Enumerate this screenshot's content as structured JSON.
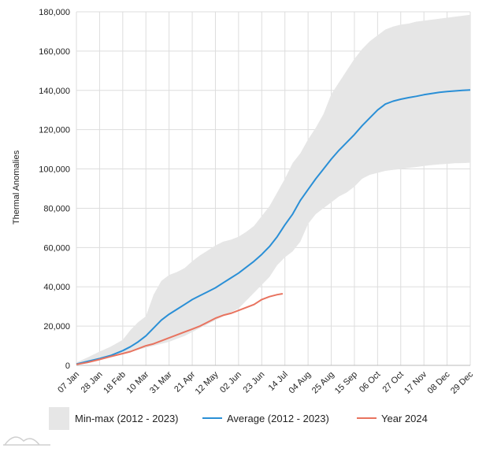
{
  "chart_data": {
    "type": "area",
    "title": "",
    "xlabel": "",
    "ylabel": "Thermal Anomalies",
    "ylim": [
      0,
      180000
    ],
    "yticks": [
      0,
      20000,
      40000,
      60000,
      80000,
      100000,
      120000,
      140000,
      160000,
      180000
    ],
    "ytick_labels": [
      "0",
      "20,000",
      "40,000",
      "60,000",
      "80,000",
      "100,000",
      "120,000",
      "140,000",
      "160,000",
      "180,000"
    ],
    "xlim_day": [
      7,
      364
    ],
    "xticks": [
      {
        "label": "07 Jan",
        "day": 7
      },
      {
        "label": "28 Jan",
        "day": 28
      },
      {
        "label": "18 Feb",
        "day": 49
      },
      {
        "label": "10 Mar",
        "day": 70
      },
      {
        "label": "31 Mar",
        "day": 91
      },
      {
        "label": "21 Apr",
        "day": 112
      },
      {
        "label": "12 May",
        "day": 133
      },
      {
        "label": "02 Jun",
        "day": 154
      },
      {
        "label": "23 Jun",
        "day": 175
      },
      {
        "label": "14 Jul",
        "day": 196
      },
      {
        "label": "04 Aug",
        "day": 217
      },
      {
        "label": "25 Aug",
        "day": 238
      },
      {
        "label": "15 Sep",
        "day": 259
      },
      {
        "label": "06 Oct",
        "day": 280
      },
      {
        "label": "27 Oct",
        "day": 301
      },
      {
        "label": "17 Nov",
        "day": 322
      },
      {
        "label": "08 Dec",
        "day": 343
      },
      {
        "label": "29 Dec",
        "day": 364
      }
    ],
    "grid": true,
    "legend_position": "bottom",
    "series": [
      {
        "name": "Min-max (2012 - 2023)",
        "kind": "band",
        "color": "#e6e6e6",
        "x": [
          7,
          17,
          28,
          38,
          49,
          56,
          63,
          70,
          77,
          84,
          91,
          98,
          105,
          112,
          119,
          126,
          133,
          140,
          147,
          154,
          161,
          168,
          175,
          182,
          189,
          196,
          203,
          210,
          217,
          224,
          231,
          238,
          245,
          252,
          259,
          266,
          273,
          280,
          287,
          294,
          301,
          308,
          315,
          322,
          329,
          336,
          343,
          350,
          357,
          364
        ],
        "upper": [
          1500,
          4000,
          7000,
          9500,
          13000,
          18000,
          22000,
          25000,
          36000,
          43000,
          46000,
          47500,
          49500,
          53000,
          56000,
          58500,
          61000,
          63000,
          64000,
          65500,
          68000,
          71000,
          76000,
          81000,
          88000,
          95000,
          103000,
          108000,
          115000,
          121000,
          128000,
          138000,
          144000,
          150000,
          156000,
          161000,
          165000,
          168000,
          171000,
          172500,
          173500,
          174000,
          175000,
          175500,
          176000,
          176500,
          177000,
          177500,
          178000,
          178500
        ],
        "lower": [
          300,
          1500,
          3000,
          4500,
          6000,
          7000,
          8000,
          9000,
          10000,
          11000,
          12000,
          13500,
          15000,
          17000,
          19000,
          21000,
          23000,
          25000,
          27000,
          29000,
          33000,
          37000,
          41000,
          45000,
          51000,
          55000,
          58000,
          63000,
          72000,
          77000,
          80000,
          83000,
          86000,
          88000,
          91000,
          95000,
          97000,
          98000,
          99000,
          99500,
          100000,
          100500,
          101000,
          101500,
          102000,
          102300,
          102600,
          102900,
          103000,
          103200
        ]
      },
      {
        "name": "Average (2012 - 2023)",
        "kind": "line",
        "color": "#2a8fd6",
        "x": [
          7,
          17,
          28,
          38,
          49,
          56,
          63,
          70,
          77,
          84,
          91,
          98,
          105,
          112,
          119,
          126,
          133,
          140,
          147,
          154,
          161,
          168,
          175,
          182,
          189,
          196,
          203,
          210,
          217,
          224,
          231,
          238,
          245,
          252,
          259,
          266,
          273,
          280,
          287,
          294,
          301,
          308,
          315,
          322,
          329,
          336,
          343,
          350,
          357,
          364
        ],
        "values": [
          700,
          2000,
          3500,
          5000,
          7500,
          9500,
          12000,
          15000,
          19000,
          23000,
          26000,
          28500,
          31000,
          33500,
          35500,
          37500,
          39500,
          42000,
          44500,
          47000,
          50000,
          53000,
          56500,
          60500,
          65500,
          71500,
          77000,
          84000,
          89500,
          95000,
          100000,
          105000,
          109500,
          113500,
          117500,
          122000,
          126000,
          130000,
          133000,
          134500,
          135500,
          136300,
          137000,
          137800,
          138400,
          139000,
          139400,
          139700,
          140000,
          140200
        ]
      },
      {
        "name": "Year 2024",
        "kind": "line",
        "color": "#e8735f",
        "x": [
          7,
          17,
          28,
          38,
          49,
          56,
          63,
          70,
          77,
          84,
          91,
          98,
          105,
          112,
          119,
          126,
          133,
          140,
          147,
          154,
          161,
          168,
          175,
          182,
          189,
          194
        ],
        "values": [
          500,
          1500,
          3000,
          4500,
          6000,
          7000,
          8500,
          10000,
          11000,
          12500,
          14000,
          15500,
          17000,
          18500,
          20000,
          22000,
          24000,
          25500,
          26500,
          28000,
          29500,
          31000,
          33500,
          35000,
          36000,
          36500
        ]
      }
    ]
  }
}
